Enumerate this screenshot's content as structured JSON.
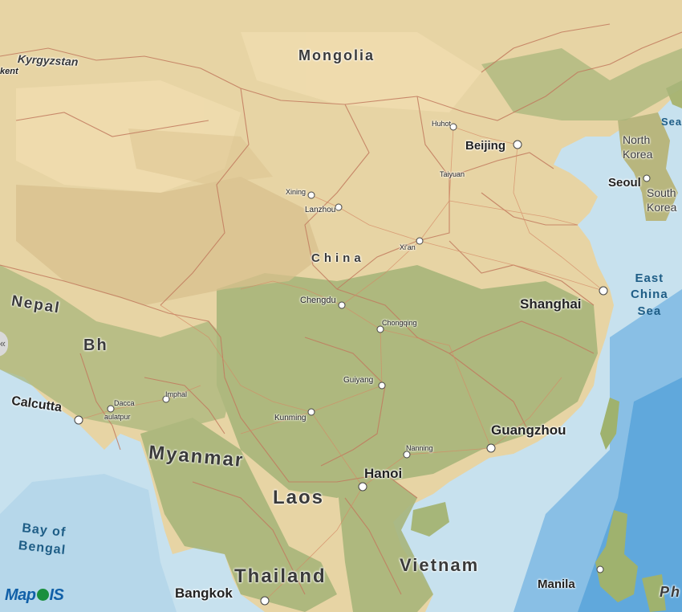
{
  "map": {
    "colors": {
      "sea": "#c7e1ee",
      "deep_sea": "#5fa8dc",
      "land": "#e6d3a3",
      "green": "#a8b77d",
      "border": "#c0715a"
    },
    "countries": {
      "kyrgyzstan": "Kyrgyzstan",
      "mongolia": "Mongolia",
      "north_korea": "North Korea",
      "south_korea": "South Korea",
      "china": "China",
      "nepal": "Nepal",
      "bhutan": "Bh",
      "myanmar": "Myanmar",
      "laos": "Laos",
      "thailand": "Thailand",
      "vietnam": "Vietnam",
      "philippines": "Ph"
    },
    "cities": {
      "bishkek": "kent",
      "huhot": "Huhot",
      "beijing": "Beijing",
      "taiyuan": "Taiyuan",
      "xining": "Xining",
      "lanzhou": "Lanzhou",
      "seoul": "Seoul",
      "xian": "Xi'an",
      "chengdu": "Chengdu",
      "shanghai": "Shanghai",
      "chongqing": "Chongqing",
      "imphal": "Imphal",
      "dacca": "Dacca",
      "aulatpur": "aulatpur",
      "guiyang": "Guiyang",
      "calcutta": "Calcutta",
      "kunming": "Kunming",
      "guangzhou": "Guangzhou",
      "nanning": "Nanning",
      "hanoi": "Hanoi",
      "manila": "Manila",
      "bangkok": "Bangkok"
    },
    "seas": {
      "sea_top": "Sea",
      "east_china_sea": [
        "East",
        "China",
        "Sea"
      ],
      "bay_of_bengal": [
        "Bay of",
        "Bengal"
      ]
    }
  },
  "ui": {
    "collapse_icon": "«",
    "logo": {
      "text_a": "Map",
      "text_b": "IS"
    }
  }
}
